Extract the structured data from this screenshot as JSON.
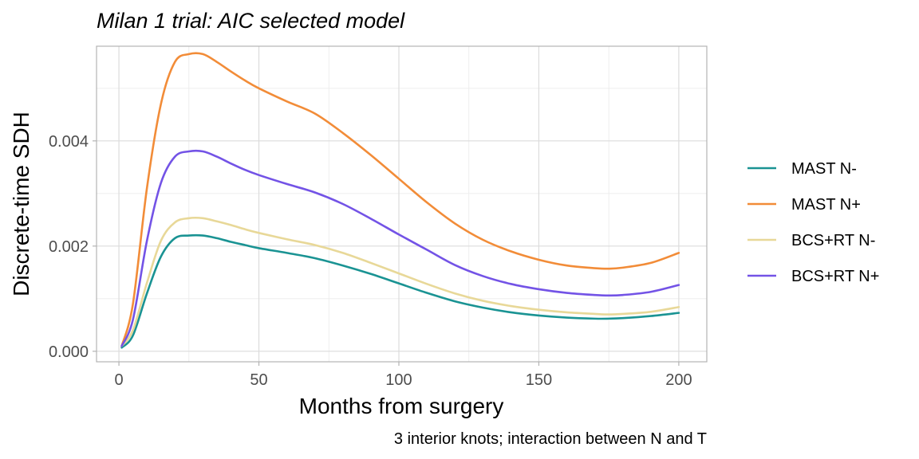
{
  "chart_data": {
    "type": "line",
    "title": "Milan 1 trial: AIC selected model",
    "xlabel": "Months from surgery",
    "ylabel": "Discrete-time SDH",
    "caption": "3 interior knots; interaction between N and T",
    "xlim": [
      -8,
      210
    ],
    "ylim": [
      -0.0002,
      0.0058
    ],
    "x_ticks": [
      0,
      50,
      100,
      150,
      200
    ],
    "x_tick_labels": [
      "0",
      "50",
      "100",
      "150",
      "200"
    ],
    "y_ticks": [
      0,
      0.002,
      0.004
    ],
    "y_tick_labels": [
      "0.000",
      "0.002",
      "0.004"
    ],
    "grid": true,
    "legend_position": "right",
    "x": [
      1,
      5,
      10,
      15,
      20,
      25,
      30,
      35,
      40,
      45,
      50,
      60,
      70,
      80,
      90,
      100,
      110,
      120,
      130,
      140,
      150,
      160,
      170,
      175,
      180,
      190,
      200
    ],
    "series": [
      {
        "name": "MAST N-",
        "color": "#1a9393",
        "values": [
          7e-05,
          0.0003,
          0.0011,
          0.0018,
          0.00215,
          0.0022,
          0.0022,
          0.00215,
          0.00208,
          0.00202,
          0.00196,
          0.00187,
          0.00177,
          0.00163,
          0.00147,
          0.00129,
          0.00111,
          0.00095,
          0.00083,
          0.00074,
          0.00068,
          0.00064,
          0.00062,
          0.00062,
          0.00063,
          0.00067,
          0.00073
        ]
      },
      {
        "name": "MAST N+",
        "color": "#f28c38",
        "values": [
          0.0001,
          0.0009,
          0.0031,
          0.0047,
          0.0055,
          0.00565,
          0.00565,
          0.0055,
          0.00532,
          0.00515,
          0.005,
          0.00475,
          0.00452,
          0.00415,
          0.00373,
          0.00328,
          0.00283,
          0.00243,
          0.00212,
          0.0019,
          0.00174,
          0.00163,
          0.00158,
          0.00157,
          0.00159,
          0.00168,
          0.00187
        ]
      },
      {
        "name": "BCS+RT N-",
        "color": "#e8d898",
        "values": [
          0.0001,
          0.0004,
          0.0013,
          0.0021,
          0.00245,
          0.00253,
          0.00253,
          0.00247,
          0.0024,
          0.00232,
          0.00225,
          0.00213,
          0.00202,
          0.00187,
          0.00168,
          0.00148,
          0.00128,
          0.0011,
          0.00096,
          0.00086,
          0.00079,
          0.00074,
          0.00071,
          0.0007,
          0.00071,
          0.00075,
          0.00084
        ]
      },
      {
        "name": "BCS+RT N+",
        "color": "#7353e6",
        "values": [
          0.0001,
          0.0006,
          0.0021,
          0.0032,
          0.0037,
          0.0038,
          0.0038,
          0.0037,
          0.00357,
          0.00345,
          0.00335,
          0.00318,
          0.00302,
          0.0028,
          0.00252,
          0.00222,
          0.00193,
          0.00164,
          0.00143,
          0.00128,
          0.00118,
          0.00111,
          0.00107,
          0.00106,
          0.00107,
          0.00113,
          0.00126
        ]
      }
    ]
  }
}
